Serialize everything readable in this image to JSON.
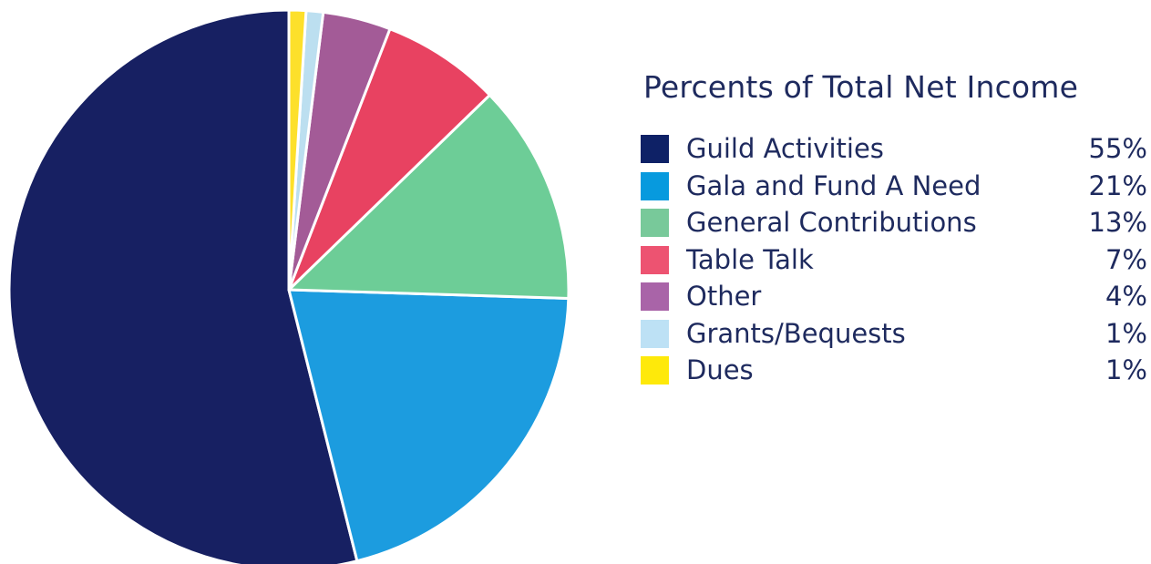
{
  "chart_data": {
    "type": "pie",
    "title": "Percents of Total Net Income",
    "legend_position": "right",
    "start_angle_deg": 0,
    "direction": "counterclockwise",
    "slices": [
      {
        "label": "Guild Activities",
        "value": 55,
        "display": "55%",
        "color": "#172062",
        "swatch_color": "#0e2166"
      },
      {
        "label": "Gala and Fund A Need",
        "value": 21,
        "display": "21%",
        "color": "#1c9cdf",
        "swatch_color": "#079ade"
      },
      {
        "label": "General Contributions",
        "value": 13,
        "display": "13%",
        "color": "#6dcd97",
        "swatch_color": "#78c99a"
      },
      {
        "label": "Table Talk",
        "value": 7,
        "display": "7%",
        "color": "#e84261",
        "swatch_color": "#ed5371"
      },
      {
        "label": "Other",
        "value": 4,
        "display": "4%",
        "color": "#a35b97",
        "swatch_color": "#a964a8"
      },
      {
        "label": "Grants/Bequests",
        "value": 1,
        "display": "1%",
        "color": "#bcdff0",
        "swatch_color": "#bde1f5"
      },
      {
        "label": "Dues",
        "value": 1,
        "display": "1%",
        "color": "#fde02b",
        "swatch_color": "#fee90a"
      }
    ]
  }
}
